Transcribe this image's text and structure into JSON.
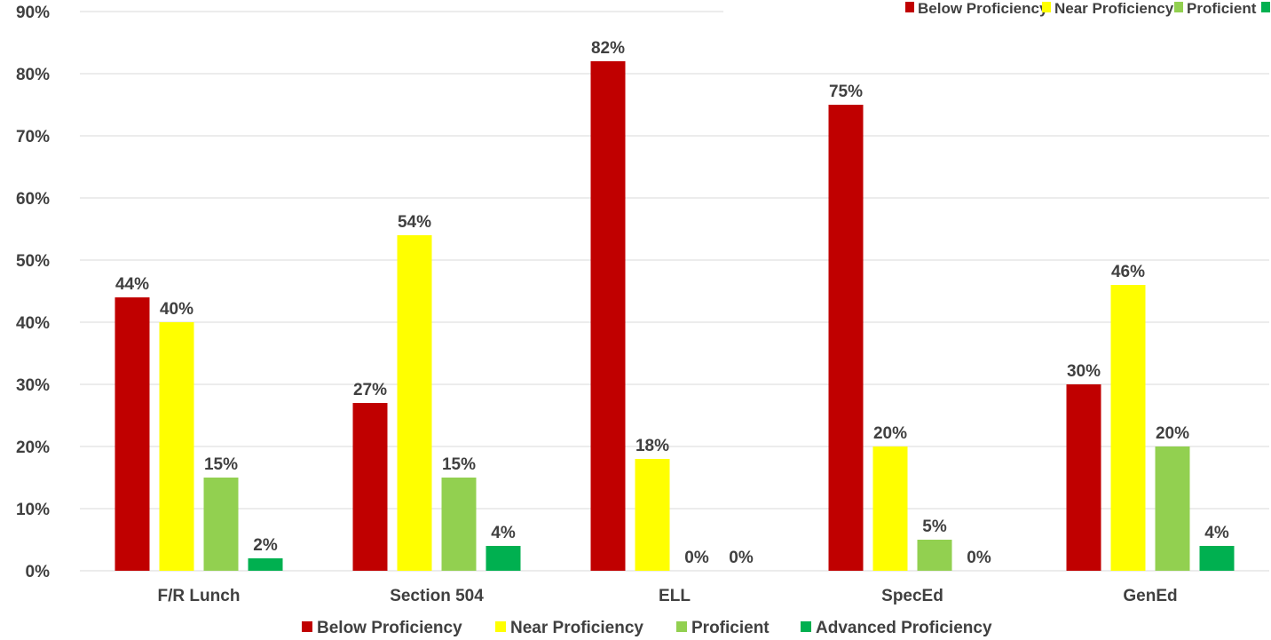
{
  "chart_data": {
    "type": "bar",
    "categories": [
      "F/R Lunch",
      "Section 504",
      "ELL",
      "SpecEd",
      "GenEd"
    ],
    "series": [
      {
        "name": "Below Proficiency",
        "color": "#c00000",
        "values": [
          44,
          27,
          82,
          75,
          30
        ],
        "labels": [
          "44%",
          "27%",
          "82%",
          "75%",
          "30%"
        ]
      },
      {
        "name": "Near Proficiency",
        "color": "#ffff00",
        "values": [
          40,
          54,
          18,
          20,
          46
        ],
        "labels": [
          "40%",
          "54%",
          "18%",
          "20%",
          "46%"
        ]
      },
      {
        "name": "Proficient",
        "color": "#92d050",
        "values": [
          15,
          15,
          0,
          5,
          20
        ],
        "labels": [
          "15%",
          "15%",
          "0%",
          "5%",
          "20%"
        ]
      },
      {
        "name": "Advanced Proficiency",
        "color": "#00b050",
        "values": [
          2,
          4,
          0,
          0,
          4
        ],
        "labels": [
          "2%",
          "4%",
          "0%",
          "0%",
          "4%"
        ]
      }
    ],
    "ylim": [
      0,
      90
    ],
    "yticks": [
      0,
      10,
      20,
      30,
      40,
      50,
      60,
      70,
      80,
      90
    ],
    "ytick_labels": [
      "0%",
      "10%",
      "20%",
      "30%",
      "40%",
      "50%",
      "60%",
      "70%",
      "80%",
      "90%"
    ],
    "grid": true,
    "legend_bottom": [
      "Below Proficiency",
      "Near Proficiency",
      "Proficient",
      "Advanced Proficiency"
    ],
    "legend_top": [
      "Below Proficiency",
      "Near Proficiency",
      "Proficient"
    ],
    "legend_placement": "bottom"
  }
}
